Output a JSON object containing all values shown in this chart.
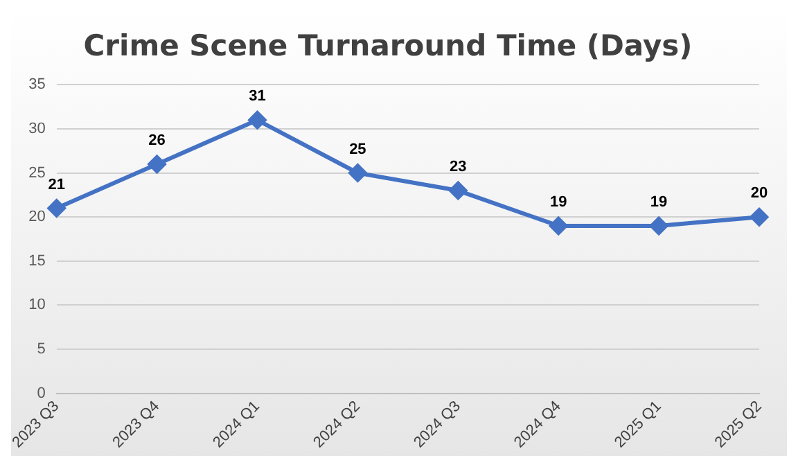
{
  "chart_data": {
    "type": "line",
    "title": "Crime Scene Turnaround Time (Days)",
    "categories": [
      "2023 Q3",
      "2023 Q4",
      "2024 Q1",
      "2024 Q2",
      "2024 Q3",
      "2024 Q4",
      "2025 Q1",
      "2025 Q2"
    ],
    "series": [
      {
        "color": "#4472c4",
        "values": [
          21,
          26,
          31,
          25,
          23,
          19,
          19,
          20
        ]
      }
    ],
    "ylim": [
      0,
      35
    ],
    "yticks": [
      0,
      5,
      10,
      15,
      20,
      25,
      30,
      35
    ],
    "grid": "y",
    "legend": false,
    "marker": "diamond",
    "line_style": "solid",
    "data_labels": true
  }
}
